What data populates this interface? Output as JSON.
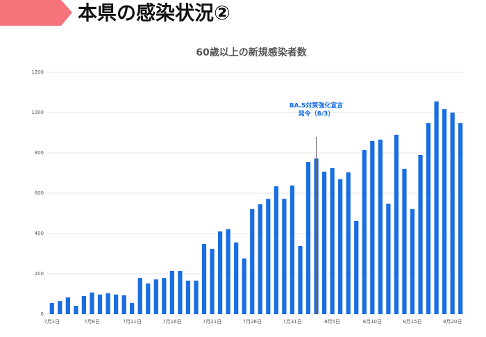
{
  "header": {
    "title": "本県の感染状況②"
  },
  "chart_data": {
    "type": "bar",
    "title": "60歳以上の新規感染者数",
    "categories": [
      "7月1日",
      null,
      null,
      null,
      null,
      "7月6日",
      null,
      null,
      null,
      null,
      "7月11日",
      null,
      null,
      null,
      null,
      "7月16日",
      null,
      null,
      null,
      null,
      "7月21日",
      null,
      null,
      null,
      null,
      "7月26日",
      null,
      null,
      null,
      null,
      "7月31日",
      null,
      null,
      null,
      null,
      "8月5日",
      null,
      null,
      null,
      null,
      "8月10日",
      null,
      null,
      null,
      null,
      "8月15日",
      null,
      null,
      null,
      null,
      "8月20日",
      null
    ],
    "values": [
      55,
      65,
      83,
      41,
      90,
      107,
      97,
      103,
      97,
      93,
      55,
      179,
      152,
      172,
      179,
      214,
      214,
      166,
      166,
      348,
      324,
      410,
      421,
      355,
      276,
      521,
      545,
      572,
      634,
      572,
      638,
      338,
      755,
      772,
      707,
      724,
      669,
      703,
      462,
      814,
      859,
      866,
      548,
      890,
      721,
      521,
      790,
      948,
      1055,
      1017,
      1000,
      948
    ],
    "color": "#1a6ee0",
    "ylim": [
      0,
      1200
    ],
    "yticks": [
      0,
      200,
      400,
      600,
      800,
      1000,
      1200
    ],
    "grid": true,
    "annotation": {
      "lines": [
        "BA.5対策強化宣言",
        "発令（8/3）"
      ]
    }
  }
}
